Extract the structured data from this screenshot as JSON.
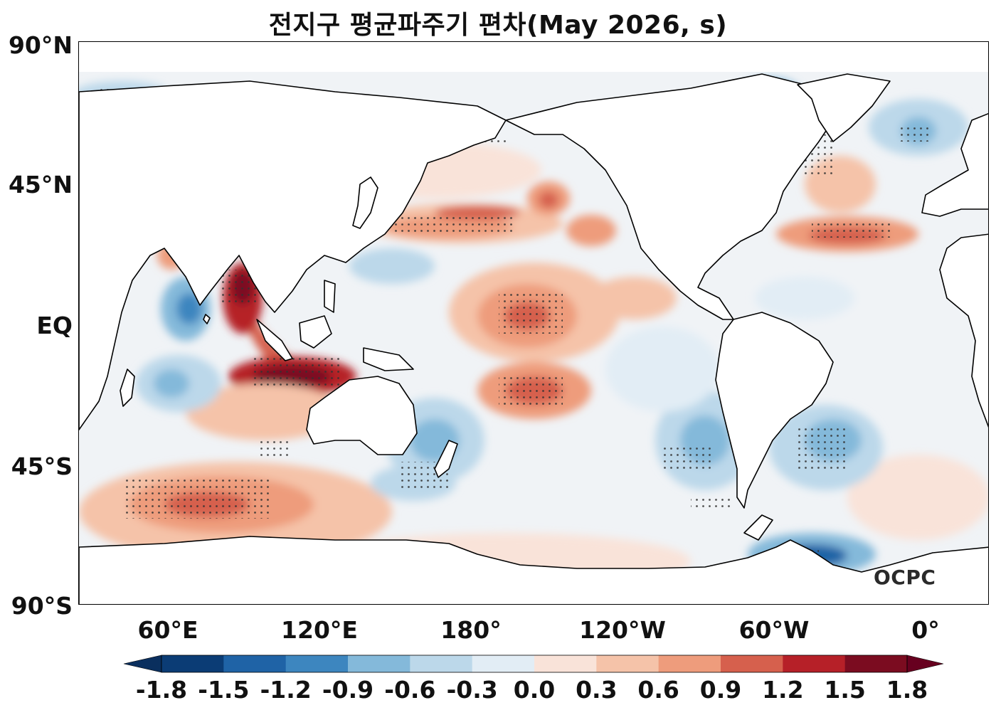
{
  "title": "전지구 평균파주기 편차(May 2026, s)",
  "lat_labels": [
    "90°N",
    "45°N",
    "EQ",
    "45°S",
    "90°S"
  ],
  "lon_labels": [
    "60°E",
    "120°E",
    "180°",
    "120°W",
    "60°W",
    "0°"
  ],
  "logo": "OCPC",
  "colorbar": {
    "ticks": [
      "-1.8",
      "-1.5",
      "-1.2",
      "-0.9",
      "-0.6",
      "-0.3",
      "0.0",
      "0.3",
      "0.6",
      "0.9",
      "1.2",
      "1.5",
      "1.8"
    ],
    "colors": [
      "#0b3c75",
      "#1f63a6",
      "#3d86bf",
      "#84b9da",
      "#bcd8ea",
      "#e2edf5",
      "#f9e3d9",
      "#f5c3a9",
      "#ee9c7c",
      "#d6604d",
      "#b62028",
      "#7b0c20"
    ],
    "under_color": "#0a2f5e",
    "over_color": "#67001f"
  },
  "colors": {
    "land": "#ffffff",
    "coast": "#000000",
    "ocean_near_zero": "#f4f6f8"
  }
}
